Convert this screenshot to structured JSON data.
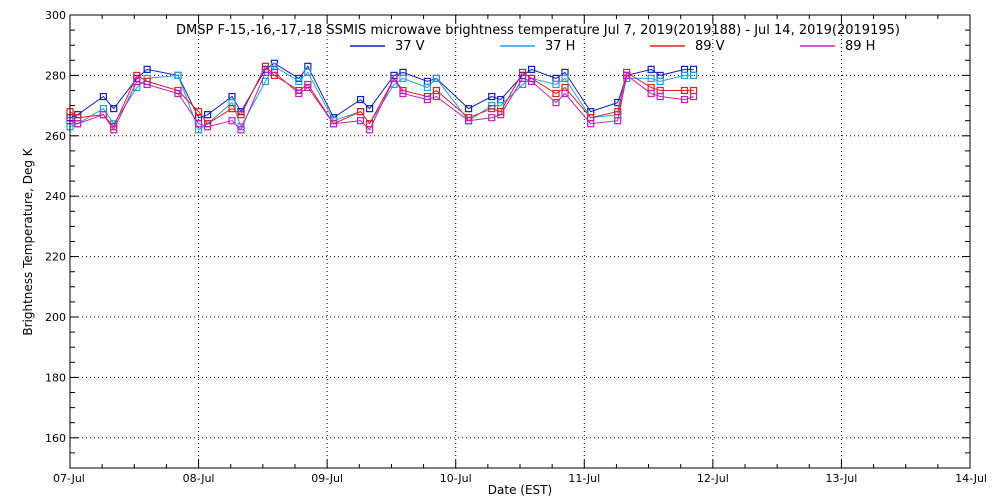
{
  "chart_data": {
    "type": "line",
    "title": "DMSP F-15,-16,-17,-18 SSMIS microwave brightness temperature Jul  7, 2019(2019188) - Jul 14, 2019(2019195)",
    "xlabel": "Date (EST)",
    "ylabel": "Brightness Temperature, Deg K",
    "x_start_date": "2019-07-07",
    "x_end_date": "2019-07-14",
    "xlim": [
      0,
      7
    ],
    "ylim": [
      150,
      300
    ],
    "x_tick_labels": [
      "07-Jul",
      "08-Jul",
      "09-Jul",
      "10-Jul",
      "11-Jul",
      "12-Jul",
      "13-Jul",
      "14-Jul"
    ],
    "y_tick_values": [
      160,
      180,
      200,
      220,
      240,
      260,
      280,
      300
    ],
    "grid": true,
    "legend_position": "top-center",
    "x_unit": "days since 07-Jul",
    "series": [
      {
        "name": "37 V",
        "color": "#1020c0",
        "x": [
          0.0,
          0.06,
          0.26,
          0.34,
          0.52,
          0.6,
          0.84,
          1.0,
          1.07,
          1.26,
          1.33,
          1.52,
          1.59,
          1.78,
          1.85,
          2.05,
          2.26,
          2.33,
          2.52,
          2.59,
          2.78,
          2.85,
          3.1,
          3.28,
          3.35,
          3.52,
          3.59,
          3.78,
          3.85,
          4.05,
          4.26,
          4.33,
          4.52,
          4.59,
          4.78,
          4.85
        ],
        "values": [
          266,
          267,
          273,
          269,
          279,
          282,
          280,
          266,
          267,
          273,
          268,
          282,
          284,
          279,
          283,
          266,
          272,
          269,
          280,
          281,
          278,
          279,
          269,
          273,
          272,
          280,
          282,
          279,
          281,
          268,
          271,
          280,
          282,
          280,
          282,
          282
        ]
      },
      {
        "name": "37 H",
        "color": "#20a0e0",
        "x": [
          0.0,
          0.06,
          0.26,
          0.34,
          0.52,
          0.6,
          0.84,
          1.0,
          1.07,
          1.26,
          1.33,
          1.52,
          1.59,
          1.78,
          1.85,
          2.05,
          2.26,
          2.33,
          2.52,
          2.59,
          2.78,
          2.85,
          3.1,
          3.28,
          3.35,
          3.52,
          3.59,
          3.78,
          3.85,
          4.05,
          4.26,
          4.33,
          4.52,
          4.59,
          4.78,
          4.85
        ],
        "values": [
          263,
          264,
          269,
          264,
          276,
          279,
          280,
          262,
          264,
          271,
          263,
          278,
          283,
          278,
          281,
          265,
          268,
          264,
          277,
          279,
          276,
          279,
          265,
          270,
          270,
          277,
          279,
          277,
          279,
          266,
          267,
          279,
          279,
          278,
          280,
          280
        ]
      },
      {
        "name": "89 V",
        "color": "#e02020",
        "x": [
          0.0,
          0.06,
          0.26,
          0.34,
          0.52,
          0.6,
          0.84,
          1.0,
          1.07,
          1.26,
          1.33,
          1.52,
          1.59,
          1.78,
          1.85,
          2.05,
          2.26,
          2.33,
          2.52,
          2.59,
          2.78,
          2.85,
          3.1,
          3.28,
          3.35,
          3.52,
          3.59,
          3.78,
          3.85,
          4.05,
          4.26,
          4.33,
          4.52,
          4.59,
          4.78,
          4.85
        ],
        "values": [
          268,
          266,
          267,
          263,
          280,
          278,
          275,
          268,
          264,
          269,
          267,
          283,
          280,
          275,
          277,
          264,
          268,
          264,
          279,
          275,
          273,
          275,
          266,
          269,
          268,
          281,
          279,
          274,
          276,
          266,
          268,
          281,
          276,
          275,
          275,
          275
        ]
      },
      {
        "name": "89 H",
        "color": "#c020c0",
        "x": [
          0.0,
          0.06,
          0.26,
          0.34,
          0.52,
          0.6,
          0.84,
          1.0,
          1.07,
          1.26,
          1.33,
          1.52,
          1.59,
          1.78,
          1.85,
          2.05,
          2.26,
          2.33,
          2.52,
          2.59,
          2.78,
          2.85,
          3.1,
          3.28,
          3.35,
          3.52,
          3.59,
          3.78,
          3.85,
          4.05,
          4.26,
          4.33,
          4.52,
          4.59,
          4.78,
          4.85
        ],
        "values": [
          265,
          264,
          267,
          262,
          278,
          277,
          274,
          264,
          263,
          265,
          262,
          281,
          281,
          274,
          276,
          264,
          265,
          262,
          279,
          274,
          272,
          273,
          265,
          266,
          267,
          279,
          278,
          271,
          274,
          264,
          265,
          280,
          274,
          273,
          272,
          273
        ]
      }
    ]
  }
}
